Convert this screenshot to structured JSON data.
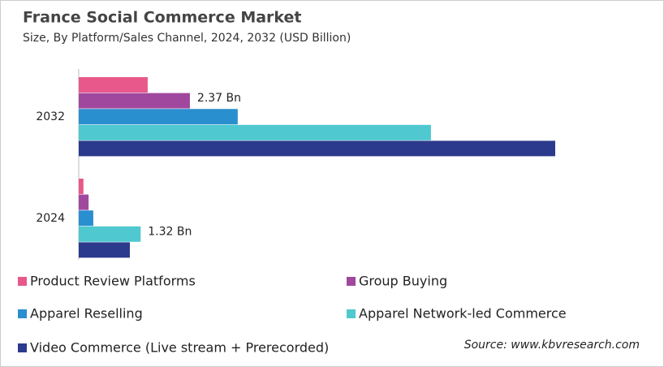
{
  "chart_data": {
    "type": "bar",
    "orientation": "horizontal",
    "title": "France Social Commerce Market",
    "subtitle": "Size, By Platform/Sales Channel, 2024, 2032 (USD Billion)",
    "categories": [
      "2032",
      "2024"
    ],
    "series": [
      {
        "name": "Product Review Platforms",
        "color": "#e8588a",
        "values": [
          1.47,
          0.1
        ]
      },
      {
        "name": "Group Buying",
        "color": "#a0489e",
        "values": [
          2.37,
          0.21
        ],
        "value_labels": [
          "2.37 Bn",
          null
        ]
      },
      {
        "name": "Apparel Reselling",
        "color": "#2a8fcf",
        "values": [
          3.39,
          0.31
        ]
      },
      {
        "name": "Apparel Network-led Commerce",
        "color": "#4fc8d0",
        "values": [
          7.51,
          1.32
        ],
        "value_labels": [
          null,
          "1.32 Bn"
        ]
      },
      {
        "name": "Video Commerce (Live stream + Prerecorded)",
        "color": "#2b3a8c",
        "values": [
          10.16,
          1.09
        ]
      }
    ],
    "source": "Source: www.kbvresearch.com"
  }
}
